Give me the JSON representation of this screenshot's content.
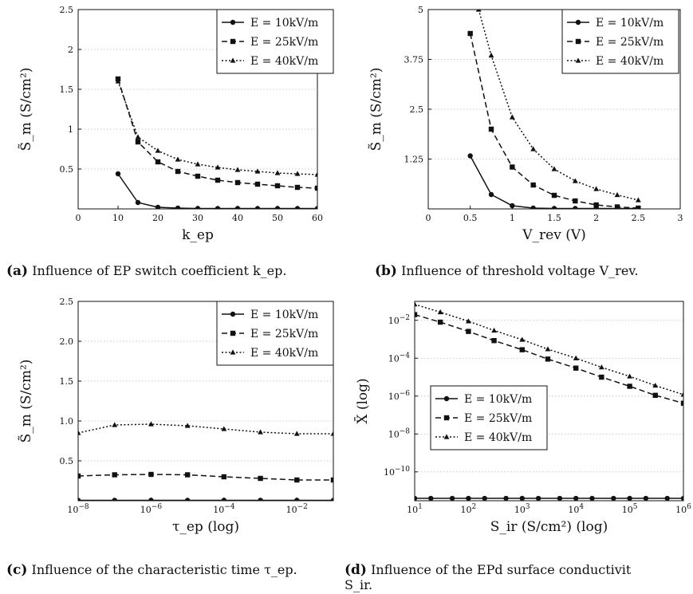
{
  "figure": {
    "panels": [
      {
        "label": "(a)",
        "caption": "Influence of EP switch coefficient k_ep."
      },
      {
        "label": "(b)",
        "caption": "Influence of threshold voltage V_rev."
      },
      {
        "label": "(c)",
        "caption": "Influence of the characteristic time τ_ep."
      },
      {
        "label": "(d)",
        "caption": "Influence of the EPd surface conductivit",
        "caption_line2": "S_ir."
      }
    ]
  },
  "chart_data": [
    {
      "type": "line",
      "xlabel": "k_ep",
      "ylabel": "S̃_m  (S/cm²)",
      "xlim": [
        0,
        60
      ],
      "ylim": [
        0,
        2.5
      ],
      "xticks": [
        0,
        10,
        20,
        30,
        40,
        50,
        60
      ],
      "yticks": [
        0.5,
        1,
        1.5,
        2,
        2.5
      ],
      "ytick_labels": [
        "0.5",
        "1",
        "1.5",
        "2",
        "2.5"
      ],
      "grid": "y-dotted",
      "legend": "top-right",
      "series": [
        {
          "name": "E = 10kV/m",
          "style": "solid-circle",
          "x": [
            10,
            15,
            20,
            25,
            30,
            35,
            40,
            45,
            50,
            55,
            60
          ],
          "y": [
            0.44,
            0.08,
            0.02,
            0.01,
            0.005,
            0.005,
            0.005,
            0.005,
            0.005,
            0.005,
            0.005
          ]
        },
        {
          "name": "E = 25kV/m",
          "style": "dashed-square",
          "x": [
            10,
            15,
            20,
            25,
            30,
            35,
            40,
            45,
            50,
            55,
            60
          ],
          "y": [
            1.63,
            0.84,
            0.59,
            0.47,
            0.41,
            0.36,
            0.33,
            0.31,
            0.29,
            0.27,
            0.26
          ]
        },
        {
          "name": "E = 40kV/m",
          "style": "dotted-triangle",
          "x": [
            10,
            15,
            20,
            25,
            30,
            35,
            40,
            45,
            50,
            55,
            60
          ],
          "y": [
            1.6,
            0.9,
            0.73,
            0.62,
            0.56,
            0.52,
            0.49,
            0.47,
            0.45,
            0.44,
            0.43
          ]
        }
      ]
    },
    {
      "type": "line",
      "xlabel": "V_rev (V)",
      "ylabel": "S̃_m  (S/cm²)",
      "xlim": [
        0,
        3
      ],
      "ylim": [
        0,
        5
      ],
      "xticks": [
        0,
        0.5,
        1,
        1.5,
        2,
        2.5,
        3
      ],
      "yticks": [
        1.25,
        2.5,
        3.75,
        5
      ],
      "ytick_labels": [
        "1.25",
        "2.5",
        "3.75",
        "5"
      ],
      "grid": "y-dotted",
      "legend": "top-right",
      "series": [
        {
          "name": "E = 10kV/m",
          "style": "solid-circle",
          "x": [
            0.5,
            0.75,
            1,
            1.25,
            1.5,
            1.75,
            2,
            2.25,
            2.5
          ],
          "y": [
            1.33,
            0.36,
            0.08,
            0.02,
            0.01,
            0.01,
            0.01,
            0.01,
            0.01
          ]
        },
        {
          "name": "E = 25kV/m",
          "style": "dashed-square",
          "x": [
            0.5,
            0.75,
            1,
            1.25,
            1.5,
            1.75,
            2,
            2.25,
            2.5
          ],
          "y": [
            4.4,
            2.0,
            1.05,
            0.6,
            0.34,
            0.2,
            0.1,
            0.05,
            0.02
          ]
        },
        {
          "name": "E = 40kV/m",
          "style": "dotted-triangle",
          "x": [
            0.6,
            0.75,
            1,
            1.25,
            1.5,
            1.75,
            2,
            2.25,
            2.5
          ],
          "y": [
            5.0,
            3.85,
            2.3,
            1.5,
            1.0,
            0.7,
            0.5,
            0.35,
            0.22
          ]
        }
      ]
    },
    {
      "type": "line",
      "xlabel": "τ_ep (log)",
      "ylabel": "S̃_m  (S/cm²)",
      "xscale": "log",
      "xlim": [
        1e-08,
        0.1
      ],
      "ylim": [
        0,
        2.5
      ],
      "xticks": [
        1e-08,
        1e-06,
        0.0001,
        0.01
      ],
      "xtick_labels": [
        "10^-8",
        "10^-6",
        "10^-4",
        "10^-2"
      ],
      "yticks": [
        0.5,
        1.0,
        1.5,
        2.0,
        2.5
      ],
      "ytick_labels": [
        "0.5",
        "1.0",
        "1.5",
        "2.0",
        "2.5"
      ],
      "grid": "y-dotted",
      "legend": "top-right",
      "series": [
        {
          "name": "E = 10kV/m",
          "style": "solid-circle",
          "x": [
            1e-08,
            1e-07,
            1e-06,
            1e-05,
            0.0001,
            0.001,
            0.01,
            0.1
          ],
          "y": [
            0.005,
            0.005,
            0.005,
            0.005,
            0.005,
            0.005,
            0.005,
            0.005
          ]
        },
        {
          "name": "E = 25kV/m",
          "style": "dashed-square",
          "x": [
            1e-08,
            1e-07,
            1e-06,
            1e-05,
            0.0001,
            0.001,
            0.01,
            0.1
          ],
          "y": [
            0.31,
            0.325,
            0.33,
            0.325,
            0.3,
            0.28,
            0.26,
            0.26
          ]
        },
        {
          "name": "E = 40kV/m",
          "style": "dotted-triangle",
          "x": [
            1e-08,
            1e-07,
            1e-06,
            1e-05,
            0.0001,
            0.001,
            0.01,
            0.1
          ],
          "y": [
            0.85,
            0.95,
            0.96,
            0.94,
            0.9,
            0.86,
            0.84,
            0.84
          ]
        }
      ]
    },
    {
      "type": "line",
      "xlabel": "S_ir (S/cm²) (log)",
      "ylabel": "X̄ (log)",
      "xscale": "log",
      "yscale": "log",
      "xlim": [
        10,
        1000000
      ],
      "ylim": [
        3e-12,
        0.1
      ],
      "xticks": [
        10,
        100,
        1000,
        10000,
        100000,
        1000000
      ],
      "xtick_labels": [
        "10^1",
        "10^2",
        "10^3",
        "10^4",
        "10^5",
        "10^6"
      ],
      "yticks": [
        1e-10,
        1e-08,
        1e-06,
        0.0001,
        0.01
      ],
      "ytick_labels": [
        "10^-10",
        "10^-8",
        "10^-6",
        "10^-4",
        "10^-2"
      ],
      "grid": "y-dotted",
      "legend": "middle-left",
      "series": [
        {
          "name": "E = 10kV/m",
          "style": "solid-circle",
          "x": [
            10,
            20,
            50,
            100,
            200,
            500,
            1000,
            2000,
            5000,
            10000,
            20000,
            50000,
            100000,
            200000,
            500000,
            1000000
          ],
          "y": [
            4e-12,
            4e-12,
            4e-12,
            4e-12,
            4e-12,
            4e-12,
            4e-12,
            4e-12,
            4e-12,
            4e-12,
            4e-12,
            4e-12,
            4e-12,
            4e-12,
            4e-12,
            4e-12
          ]
        },
        {
          "name": "E = 25kV/m",
          "style": "dashed-square",
          "x": [
            10,
            30,
            100,
            300,
            1000,
            3000,
            10000,
            30000,
            100000,
            300000,
            1000000
          ],
          "y": [
            0.02,
            0.008,
            0.0026,
            0.00085,
            0.00028,
            9e-05,
            3e-05,
            1e-05,
            3.3e-06,
            1.1e-06,
            4.2e-07
          ]
        },
        {
          "name": "E = 40kV/m",
          "style": "dotted-triangle",
          "x": [
            10,
            30,
            100,
            300,
            1000,
            3000,
            10000,
            30000,
            100000,
            300000,
            1000000
          ],
          "y": [
            0.07,
            0.027,
            0.009,
            0.0029,
            0.00095,
            0.0003,
            0.0001,
            3.3e-05,
            1.1e-05,
            3.6e-06,
            1.2e-06
          ]
        }
      ]
    }
  ]
}
